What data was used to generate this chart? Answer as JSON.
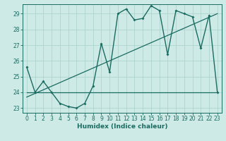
{
  "xlabel": "Humidex (Indice chaleur)",
  "ylabel": "",
  "bg_color": "#ceeae7",
  "grid_color": "#aed4d0",
  "line_color": "#1a6b60",
  "xlim": [
    -0.5,
    23.5
  ],
  "ylim": [
    22.7,
    29.6
  ],
  "xticks": [
    0,
    1,
    2,
    3,
    4,
    5,
    6,
    7,
    8,
    9,
    10,
    11,
    12,
    13,
    14,
    15,
    16,
    17,
    18,
    19,
    20,
    21,
    22,
    23
  ],
  "yticks": [
    23,
    24,
    25,
    26,
    27,
    28,
    29
  ],
  "curve_x": [
    0,
    1,
    2,
    3,
    4,
    5,
    6,
    7,
    8,
    9,
    10,
    11,
    12,
    13,
    14,
    15,
    16,
    17,
    18,
    19,
    20,
    21,
    22,
    23
  ],
  "curve_y": [
    25.6,
    24.0,
    24.7,
    24.0,
    23.3,
    23.1,
    23.0,
    23.3,
    24.4,
    27.1,
    25.3,
    29.0,
    29.3,
    28.6,
    28.7,
    29.5,
    29.2,
    26.4,
    29.2,
    29.0,
    28.8,
    26.8,
    28.9,
    24.0
  ],
  "trend1_x": [
    0,
    23
  ],
  "trend1_y": [
    24.0,
    24.0
  ],
  "trend2_x": [
    0,
    23
  ],
  "trend2_y": [
    23.7,
    29.0
  ]
}
